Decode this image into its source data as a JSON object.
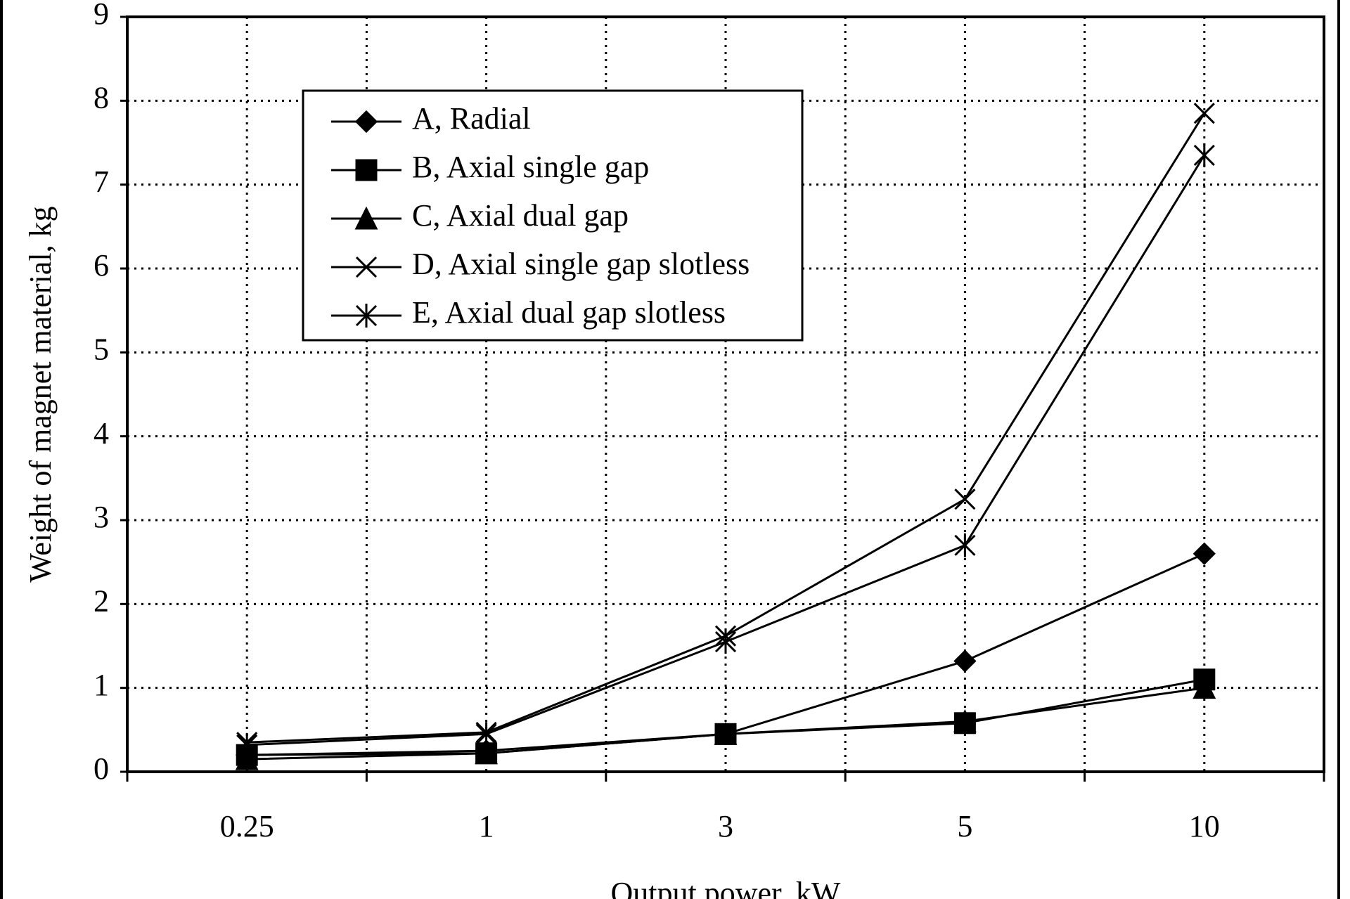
{
  "chart_data": {
    "type": "line",
    "x_label": "Output power, kW",
    "y_label": "Weight of magnet material, kg",
    "categories": [
      "0.25",
      "1",
      "3",
      "5",
      "10"
    ],
    "series": [
      {
        "name": "A, Radial",
        "color": "#000000",
        "marker": "diamond",
        "values": [
          0.2,
          0.25,
          0.45,
          1.32,
          2.6
        ]
      },
      {
        "name": "B, Axial single gap",
        "color": "#000000",
        "marker": "square",
        "values": [
          0.2,
          0.22,
          0.45,
          0.58,
          1.1
        ]
      },
      {
        "name": "C, Axial dual gap",
        "color": "#000000",
        "marker": "triangle",
        "values": [
          0.15,
          0.22,
          0.45,
          0.6,
          1.0
        ]
      },
      {
        "name": "D, Axial single gap slotless",
        "color": "#000000",
        "marker": "x",
        "values": [
          0.35,
          0.47,
          1.62,
          3.25,
          7.85
        ]
      },
      {
        "name": "E, Axial dual gap slotless",
        "color": "#000000",
        "marker": "star",
        "values": [
          0.32,
          0.45,
          1.55,
          2.7,
          7.35
        ]
      }
    ],
    "ylim": [
      0,
      9
    ],
    "yticks": [
      0,
      1,
      2,
      3,
      4,
      5,
      6,
      7,
      8,
      9
    ],
    "grid": true,
    "legend": "top-left"
  }
}
